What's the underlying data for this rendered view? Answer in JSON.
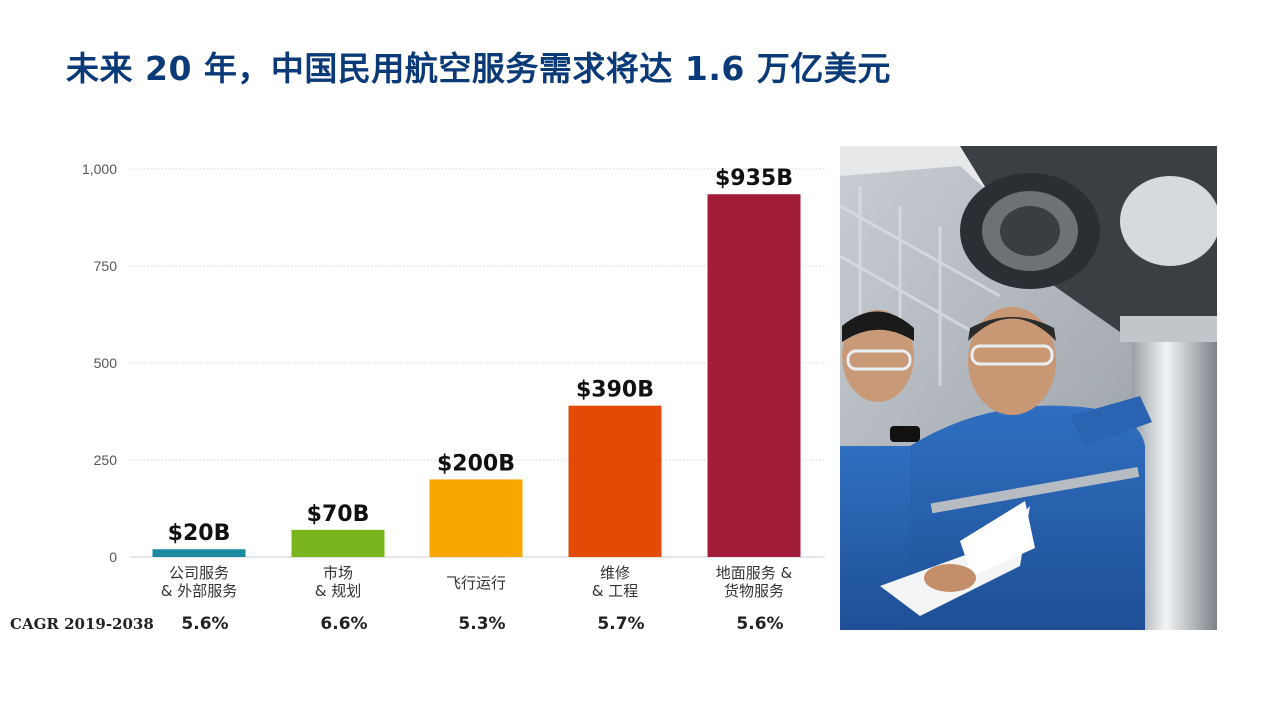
{
  "title": "未来 20 年，中国民用航空服务需求将达 1.6 万亿美元",
  "colors": {
    "title": "#0b3a78",
    "bars": [
      "#1a8aa0",
      "#7ab51d",
      "#f7a600",
      "#e24a06",
      "#a21b39"
    ]
  },
  "chart_data": {
    "type": "bar",
    "title": "",
    "xlabel": "",
    "ylabel": "",
    "ylim": [
      0,
      1000
    ],
    "yticks": [
      0,
      250,
      500,
      750,
      1000
    ],
    "ytick_labels": [
      "0",
      "250",
      "500",
      "750",
      "1,000"
    ],
    "grid": true,
    "categories": [
      [
        "公司服务",
        "& 外部服务"
      ],
      [
        "市场",
        "& 规划"
      ],
      [
        "飞行运行"
      ],
      [
        "维修",
        "& 工程"
      ],
      [
        "地面服务 &",
        "货物服务"
      ]
    ],
    "values": [
      20,
      70,
      200,
      390,
      935
    ],
    "data_labels": [
      "$20B",
      "$70B",
      "$200B",
      "$390B",
      "$935B"
    ],
    "cagr_label": "CAGR 2019-2038",
    "cagr_values": [
      "5.6%",
      "6.6%",
      "5.3%",
      "5.7%",
      "5.6%"
    ]
  },
  "photo": {
    "description_icon": "technicians-inspecting-landing-gear-photo"
  }
}
